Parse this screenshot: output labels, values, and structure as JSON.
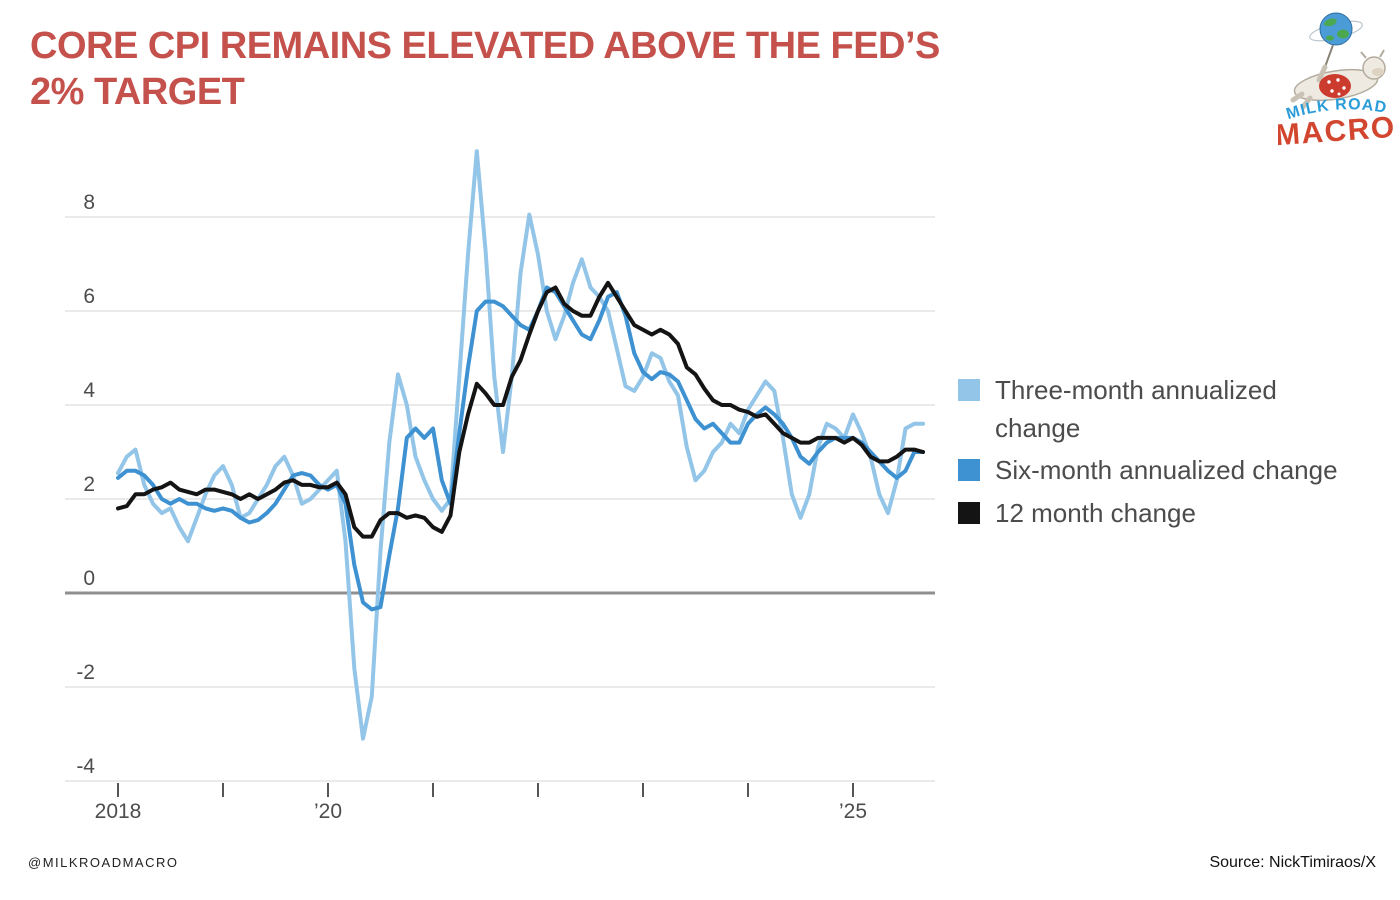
{
  "header": {
    "title_line1": "CORE CPI REMAINS ELEVATED ABOVE THE FED’S",
    "title_line2": "2% TARGET"
  },
  "logo": {
    "milk_road": "MILK ROAD",
    "macro": "MACRO"
  },
  "footer": {
    "handle": "@MILKROADMACRO",
    "source": "Source: NickTimiraos/X"
  },
  "colors": {
    "title": "#c5514c",
    "three_month": "#92c5e8",
    "six_month": "#3e92d2",
    "twelve_month": "#141414",
    "grid": "#e4e4e4",
    "zero_line": "#8f8f8f",
    "axis_text": "#4d4d4d",
    "legend_text": "#4c4c4c",
    "logo_blue": "#2b9cd8",
    "logo_red": "#d2452e"
  },
  "chart_data": {
    "type": "line",
    "x_interval": "monthly",
    "x_start": "2018-01",
    "x_end": "2025-09",
    "n_year_ticks": 8,
    "x_tick_labels": [
      {
        "label": "2018",
        "year_offset": 0
      },
      {
        "label": "’20",
        "year_offset": 2
      },
      {
        "label": "’25",
        "year_offset": 7
      }
    ],
    "yticks": [
      8,
      6,
      4,
      2,
      0,
      -2,
      -4
    ],
    "ylim": [
      -4,
      8
    ],
    "zero_line": true,
    "grid": true,
    "legend_position": "right",
    "series": [
      {
        "name": "Three-month annualized change",
        "color": "#92c5e8",
        "values": [
          2.55,
          2.9,
          3.05,
          2.3,
          1.9,
          1.7,
          1.8,
          1.4,
          1.1,
          1.6,
          2.1,
          2.5,
          2.7,
          2.3,
          1.6,
          1.7,
          2.0,
          2.3,
          2.7,
          2.9,
          2.5,
          1.9,
          2.0,
          2.2,
          2.4,
          2.6,
          1.1,
          -1.6,
          -3.1,
          -2.2,
          0.9,
          3.2,
          4.65,
          4.0,
          2.9,
          2.4,
          2.0,
          1.75,
          2.0,
          4.6,
          7.2,
          9.4,
          7.3,
          4.6,
          3.0,
          4.6,
          6.8,
          8.05,
          7.2,
          6.0,
          5.4,
          5.9,
          6.6,
          7.1,
          6.5,
          6.3,
          6.0,
          5.2,
          4.4,
          4.3,
          4.6,
          5.1,
          5.0,
          4.5,
          4.2,
          3.1,
          2.4,
          2.6,
          3.0,
          3.2,
          3.6,
          3.4,
          3.9,
          4.2,
          4.5,
          4.3,
          3.3,
          2.1,
          1.6,
          2.1,
          3.1,
          3.6,
          3.5,
          3.3,
          3.8,
          3.4,
          2.9,
          2.1,
          1.7,
          2.4,
          3.5,
          3.6,
          3.6
        ]
      },
      {
        "name": "Six-month annualized change",
        "color": "#3e92d2",
        "values": [
          2.45,
          2.6,
          2.6,
          2.5,
          2.3,
          2.0,
          1.9,
          2.0,
          1.9,
          1.9,
          1.8,
          1.75,
          1.8,
          1.75,
          1.6,
          1.5,
          1.55,
          1.7,
          1.9,
          2.2,
          2.5,
          2.55,
          2.5,
          2.3,
          2.2,
          2.3,
          1.9,
          0.6,
          -0.2,
          -0.35,
          -0.3,
          0.8,
          1.8,
          3.3,
          3.5,
          3.3,
          3.5,
          2.4,
          1.9,
          3.4,
          4.8,
          6.0,
          6.2,
          6.2,
          6.1,
          5.9,
          5.7,
          5.6,
          6.0,
          6.5,
          6.4,
          6.1,
          5.8,
          5.5,
          5.4,
          5.8,
          6.3,
          6.4,
          5.9,
          5.1,
          4.7,
          4.55,
          4.7,
          4.65,
          4.5,
          4.1,
          3.7,
          3.5,
          3.6,
          3.4,
          3.2,
          3.2,
          3.6,
          3.8,
          3.95,
          3.8,
          3.6,
          3.3,
          2.9,
          2.75,
          3.0,
          3.2,
          3.3,
          3.3,
          3.3,
          3.2,
          3.0,
          2.8,
          2.6,
          2.45,
          2.6,
          3.0,
          3.0
        ]
      },
      {
        "name": "12 month change",
        "color": "#141414",
        "values": [
          1.8,
          1.85,
          2.1,
          2.1,
          2.2,
          2.25,
          2.35,
          2.2,
          2.15,
          2.1,
          2.2,
          2.2,
          2.15,
          2.1,
          2.0,
          2.1,
          2.0,
          2.1,
          2.2,
          2.35,
          2.4,
          2.3,
          2.3,
          2.25,
          2.25,
          2.35,
          2.1,
          1.4,
          1.2,
          1.2,
          1.55,
          1.7,
          1.7,
          1.6,
          1.65,
          1.6,
          1.4,
          1.3,
          1.65,
          3.0,
          3.8,
          4.45,
          4.25,
          4.0,
          4.0,
          4.6,
          4.95,
          5.5,
          6.0,
          6.4,
          6.5,
          6.15,
          6.0,
          5.9,
          5.9,
          6.3,
          6.6,
          6.3,
          6.0,
          5.7,
          5.6,
          5.5,
          5.6,
          5.5,
          5.3,
          4.8,
          4.65,
          4.35,
          4.1,
          4.0,
          4.0,
          3.9,
          3.85,
          3.75,
          3.8,
          3.6,
          3.4,
          3.3,
          3.2,
          3.2,
          3.3,
          3.3,
          3.3,
          3.2,
          3.3,
          3.15,
          2.9,
          2.8,
          2.8,
          2.9,
          3.05,
          3.05,
          3.0
        ]
      }
    ]
  }
}
